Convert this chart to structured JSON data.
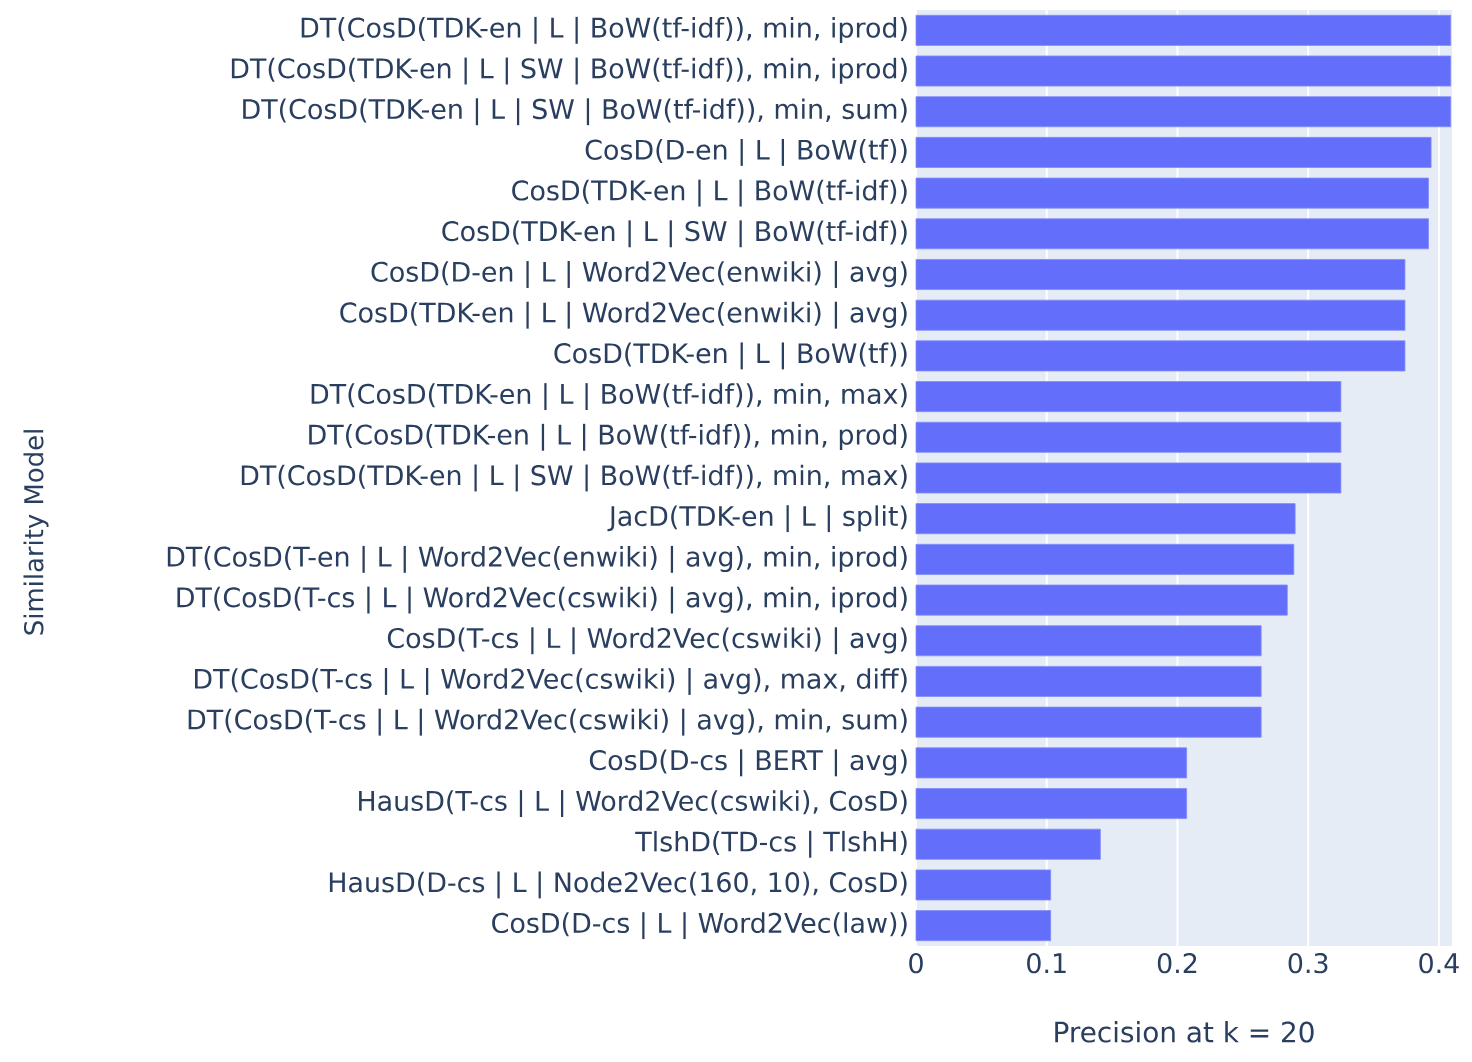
{
  "chart_data": {
    "type": "bar",
    "orientation": "horizontal",
    "xlabel": "Precision at k = 20",
    "ylabel": "Similarity Model",
    "categories": [
      "DT(CosD(TDK-en | L | BoW(tf-idf)), min, iprod)",
      "DT(CosD(TDK-en | L | SW | BoW(tf-idf)), min, iprod)",
      "DT(CosD(TDK-en | L | SW | BoW(tf-idf)), min, sum)",
      "CosD(D-en | L | BoW(tf))",
      "CosD(TDK-en | L | BoW(tf-idf))",
      "CosD(TDK-en | L | SW | BoW(tf-idf))",
      "CosD(D-en | L | Word2Vec(enwiki) | avg)",
      "CosD(TDK-en | L | Word2Vec(enwiki) | avg)",
      "CosD(TDK-en | L | BoW(tf))",
      "DT(CosD(TDK-en | L | BoW(tf-idf)), min, max)",
      "DT(CosD(TDK-en | L | BoW(tf-idf)), min, prod)",
      "DT(CosD(TDK-en | L | SW | BoW(tf-idf)), min, max)",
      "JacD(TDK-en | L | split)",
      "DT(CosD(T-en | L | Word2Vec(enwiki) | avg), min, iprod)",
      "DT(CosD(T-cs | L | Word2Vec(cswiki) | avg), min, iprod)",
      "CosD(T-cs | L | Word2Vec(cswiki) | avg)",
      "DT(CosD(T-cs | L | Word2Vec(cswiki) | avg), max, diff)",
      "DT(CosD(T-cs | L | Word2Vec(cswiki) | avg), min, sum)",
      "CosD(D-cs | BERT | avg)",
      "HausD(T-cs | L | Word2Vec(cswiki), CosD)",
      "TlshD(TD-cs | TlshH)",
      "HausD(D-cs | L | Node2Vec(160, 10), CosD)",
      "CosD(D-cs | L | Word2Vec(law))"
    ],
    "values": [
      0.409,
      0.409,
      0.409,
      0.394,
      0.392,
      0.392,
      0.374,
      0.374,
      0.374,
      0.325,
      0.325,
      0.325,
      0.29,
      0.289,
      0.284,
      0.264,
      0.264,
      0.264,
      0.207,
      0.207,
      0.141,
      0.103,
      0.103
    ],
    "color": "#636efa",
    "xlim": [
      0,
      0.41
    ],
    "xticks": [
      0,
      0.1,
      0.2,
      0.3,
      0.4
    ],
    "grid": "x"
  }
}
